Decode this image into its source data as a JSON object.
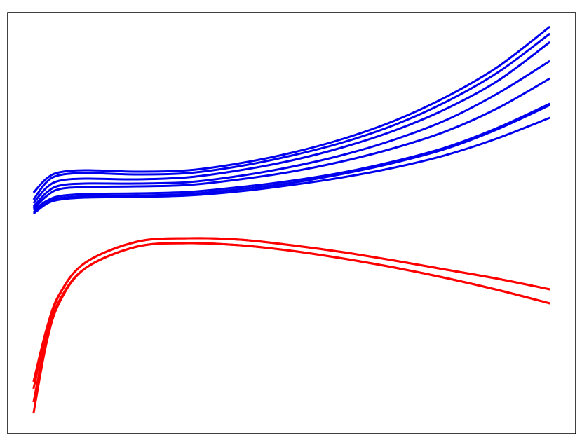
{
  "chart_data": {
    "type": "line",
    "x": [
      0,
      0.25,
      0.5,
      1,
      2,
      3,
      4,
      5,
      6,
      7,
      8,
      9,
      10
    ],
    "xlim": [
      -0.5,
      10.5
    ],
    "ylim": [
      0,
      601
    ],
    "series": [
      {
        "color": "#0000ee",
        "values": [
          344,
          364,
          373,
          376,
          374,
          376,
          386,
          401,
          421,
          447,
          481,
          524,
          581
        ]
      },
      {
        "color": "#0000ee",
        "values": [
          334,
          359,
          369,
          372,
          370,
          372,
          382,
          397,
          416,
          441,
          474,
          516,
          571
        ]
      },
      {
        "color": "#0000ee",
        "values": [
          329,
          351,
          361,
          364,
          363,
          366,
          376,
          390,
          409,
          433,
          464,
          504,
          559
        ]
      },
      {
        "color": "#0000ee",
        "values": [
          324,
          344,
          354,
          357,
          357,
          359,
          368,
          381,
          398,
          420,
          448,
          486,
          532
        ]
      },
      {
        "color": "#0000ee",
        "values": [
          321,
          339,
          349,
          352,
          353,
          355,
          363,
          374,
          389,
          408,
          432,
          465,
          507
        ]
      },
      {
        "color": "#0000ee",
        "values": [
          319,
          332,
          339,
          342,
          343,
          345,
          352,
          361,
          373,
          389,
          409,
          437,
          471
        ]
      },
      {
        "color": "#0000ee",
        "values": [
          316,
          330,
          336,
          339,
          340,
          342,
          349,
          358,
          371,
          387,
          407,
          435,
          469
        ]
      },
      {
        "color": "#0000ee",
        "values": [
          314,
          328,
          334,
          337,
          338,
          340,
          346,
          355,
          366,
          380,
          398,
          422,
          451
        ]
      },
      {
        "color": "#ff0000",
        "values": [
          74,
          149,
          199,
          244,
          274,
          279,
          277,
          269,
          259,
          247,
          234,
          221,
          206
        ]
      },
      {
        "color": "#ff0000",
        "values": [
          64,
          145,
          198,
          244,
          274,
          279,
          277,
          269,
          259,
          247,
          234,
          221,
          206
        ]
      },
      {
        "color": "#ff0000",
        "values": [
          45,
          135,
          190,
          236,
          267,
          272,
          269,
          261,
          250,
          237,
          222,
          205,
          186
        ]
      },
      {
        "color": "#ff0000",
        "values": [
          29,
          129,
          187,
          236,
          267,
          272,
          269,
          261,
          250,
          237,
          222,
          205,
          186
        ]
      }
    ]
  }
}
